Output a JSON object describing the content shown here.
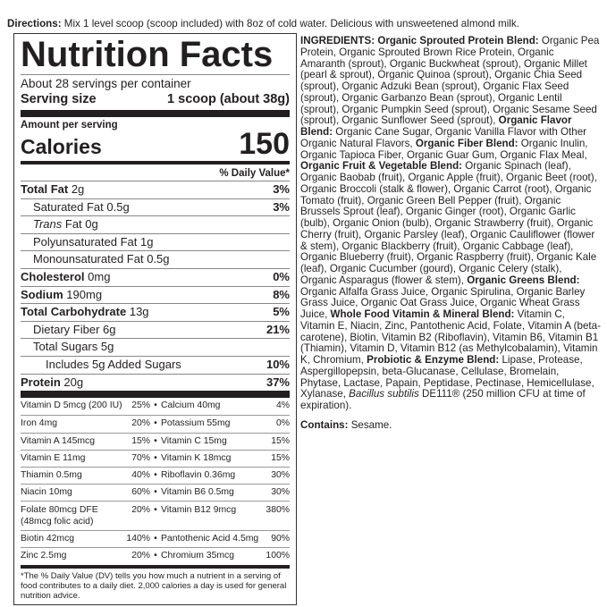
{
  "directions": {
    "label": "Directions:",
    "text": " Mix 1 level scoop (scoop included) with 8oz of cold water. Delicious with unsweetened almond milk."
  },
  "facts": {
    "title": "Nutrition Facts",
    "servings": "About 28 servings per container",
    "serving_size_label": "Serving size",
    "serving_size_value": "1 scoop (about 38g)",
    "amount_per_serving": "Amount per serving",
    "calories_label": "Calories",
    "calories_value": "150",
    "dv_header": "% Daily Value*",
    "rows": [
      {
        "name": "Total Fat",
        "amount": "2g",
        "dv": "3%",
        "bold": true,
        "indent": 0
      },
      {
        "name": "Saturated Fat",
        "amount": "0.5g",
        "dv": "3%",
        "bold": false,
        "indent": 1
      },
      {
        "name": "Trans",
        "suffix": " Fat",
        "amount": "0g",
        "dv": "",
        "bold": false,
        "indent": 1,
        "italic": true
      },
      {
        "name": "Polyunsaturated Fat",
        "amount": "1g",
        "dv": "",
        "bold": false,
        "indent": 1
      },
      {
        "name": "Monounsaturated Fat",
        "amount": "0.5g",
        "dv": "",
        "bold": false,
        "indent": 1
      },
      {
        "name": "Cholesterol",
        "amount": "0mg",
        "dv": "0%",
        "bold": true,
        "indent": 0
      },
      {
        "name": "Sodium",
        "amount": "190mg",
        "dv": "8%",
        "bold": true,
        "indent": 0
      },
      {
        "name": "Total Carbohydrate",
        "amount": "13g",
        "dv": "5%",
        "bold": true,
        "indent": 0
      },
      {
        "name": "Dietary Fiber",
        "amount": "6g",
        "dv": "21%",
        "bold": false,
        "indent": 1
      },
      {
        "name": "Total Sugars",
        "amount": "5g",
        "dv": "",
        "bold": false,
        "indent": 1
      },
      {
        "name": "Includes 5g Added Sugars",
        "amount": "",
        "dv": "10%",
        "bold": false,
        "indent": 2
      },
      {
        "name": "Protein",
        "amount": "20g",
        "dv": "37%",
        "bold": true,
        "indent": 0
      }
    ],
    "vitamins": [
      {
        "a": "Vitamin D 5mcg (200 IU)",
        "ap": "25%",
        "b": "Calcium 40mg",
        "bp": "4%"
      },
      {
        "a": "Iron 4mg",
        "ap": "20%",
        "b": "Potassium 55mg",
        "bp": "0%"
      },
      {
        "a": "Vitamin A 145mcg",
        "ap": "15%",
        "b": "Vitamin C 15mg",
        "bp": "15%"
      },
      {
        "a": "Vitamin E 11mg",
        "ap": "70%",
        "b": "Vitamin K 18mcg",
        "bp": "15%"
      },
      {
        "a": "Thiamin 0.5mg",
        "ap": "40%",
        "b": "Riboflavin 0.36mg",
        "bp": "30%"
      },
      {
        "a": "Niacin 10mg",
        "ap": "60%",
        "b": "Vitamin B6 0.5mg",
        "bp": "30%"
      },
      {
        "a": "Folate 80mcg DFE\n(48mcg folic acid)",
        "ap": "20%",
        "b": "Vitamin B12 9mcg",
        "bp": "380%",
        "tall": true
      },
      {
        "a": "Biotin 42mcg",
        "ap": "140%",
        "b": "Pantothenic Acid 4.5mg",
        "bp": "90%"
      },
      {
        "a": "Zinc 2.5mg",
        "ap": "20%",
        "b": "Chromium 35mcg",
        "bp": "100%"
      }
    ],
    "bullet": "•",
    "footnote": "*The % Daily Value (DV) tells you how much a nutrient in a serving of food contributes to a daily diet. 2,000 calories a day is used for general nutrition advice."
  },
  "ingredients": [
    {
      "t": "INGREDIENTS: Organic Sprouted Protein Blend:",
      "b": true
    },
    {
      "t": " Organic Pea Protein, Organic Sprouted Brown Rice Protein, Organic Amaranth (sprout), Organic Buckwheat (sprout), Organic Millet (pearl & sprout), Organic Quinoa (sprout), Organic Chia Seed (sprout), Organic Adzuki Bean (sprout), Organic Flax Seed (sprout), Organic Garbanzo Bean (sprout), Organic Lentil (sprout), Organic Pumpkin Seed (sprout), Organic Sesame Seed (sprout), Organic Sunflower Seed (sprout), "
    },
    {
      "t": "Organic Flavor Blend:",
      "b": true
    },
    {
      "t": " Organic Cane Sugar, Organic Vanilla Flavor with Other Organic Natural Flavors, "
    },
    {
      "t": "Organic Fiber Blend:",
      "b": true
    },
    {
      "t": " Organic Inulin, Organic Tapioca Fiber, Organic Guar Gum, Organic Flax Meal, "
    },
    {
      "t": "Organic Fruit & Vegetable Blend:",
      "b": true
    },
    {
      "t": " Organic Spinach (leaf), Organic Baobab (fruit), Organic Apple (fruit), Organic Beet (root), Organic Broccoli (stalk & flower), Organic Carrot (root), Organic Tomato (fruit), Organic Green Bell Pepper (fruit), Organic Brussels Sprout (leaf), Organic Ginger (root), Organic Garlic (bulb), Organic Onion (bulb), Organic Strawberry (fruit), Organic Cherry (fruit), Organic Parsley (leaf), Organic Cauliflower (flower & stem), Organic Blackberry (fruit), Organic Cabbage (leaf), Organic Blueberry (fruit), Organic Raspberry (fruit), Organic Kale (leaf), Organic Cucumber (gourd), Organic Celery (stalk), Organic Asparagus (flower & stem), "
    },
    {
      "t": "Organic Greens Blend:",
      "b": true
    },
    {
      "t": " Organic Alfalfa Grass Juice, Organic Spirulina, Organic Barley Grass Juice, Organic Oat Grass Juice, Organic Wheat Grass Juice, "
    },
    {
      "t": "Whole Food Vitamin & Mineral Blend:",
      "b": true
    },
    {
      "t": " Vitamin C, Vitamin E, Niacin, Zinc, Pantothenic Acid, Folate, Vitamin A (beta-carotene), Biotin, Vitamin B2 (Riboflavin), Vitamin B6, Vitamin B1 (Thiamin), Vitamin D, Vitamin B12 (as Methylcobalamin), Vitamin K, Chromium, "
    },
    {
      "t": "Probiotic & Enzyme Blend:",
      "b": true
    },
    {
      "t": " Lipase, Protease, Aspergillopepsin, beta-Glucanase, Cellulase, Bromelain, Phytase, Lactase, Papain, Peptidase, Pectinase, Hemicellulase, Xylanase, "
    },
    {
      "t": "Bacillus subtilis",
      "i": true
    },
    {
      "t": " DE111® (250 million CFU at time of expiration)."
    }
  ],
  "contains": {
    "label": "Contains:",
    "text": " Sesame."
  }
}
